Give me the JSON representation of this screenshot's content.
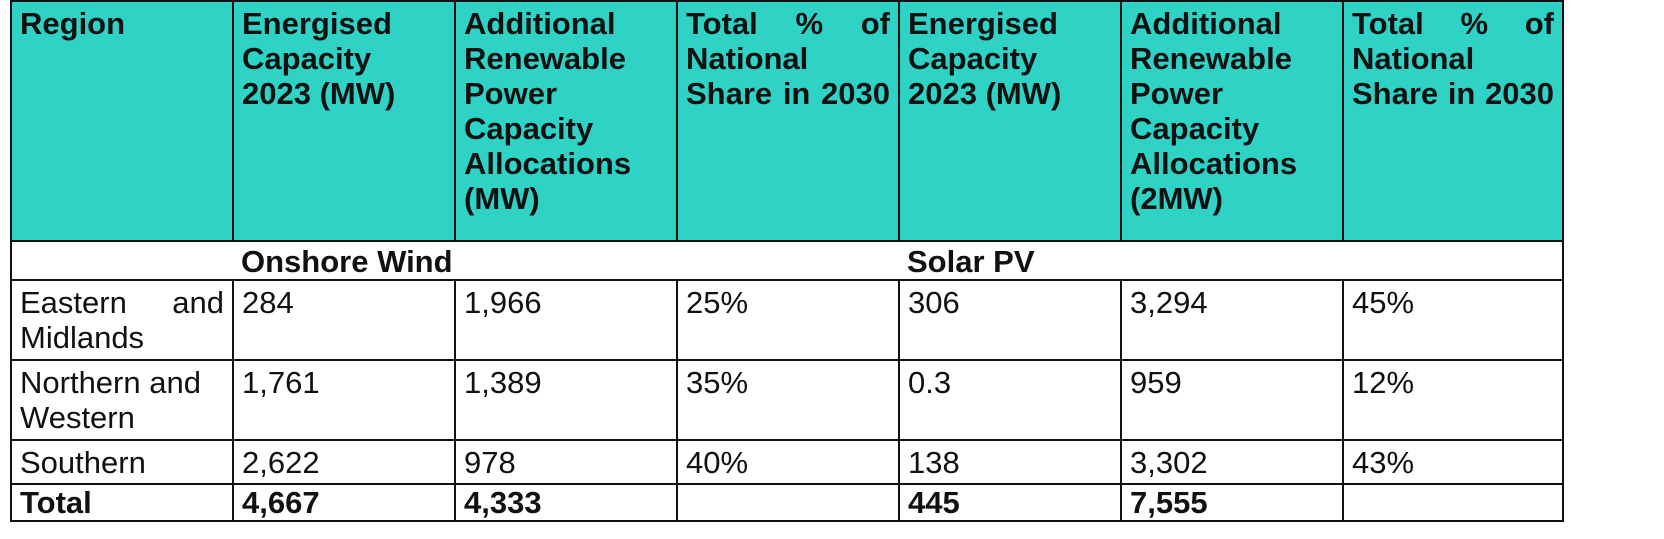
{
  "headers": {
    "region": "Region",
    "wind_energised": "Energised Capacity 2023 (MW)",
    "wind_additional": "Additional Renewable Power Capacity Allocations (MW)",
    "wind_share": "Total % of National Share in 2030",
    "solar_energised": "Energised Capacity 2023 (MW)",
    "solar_additional": "Additional Renewable Power Capacity Allocations (2MW)",
    "solar_share": "Total % of National Share in 2030"
  },
  "groups": {
    "wind": "Onshore Wind",
    "solar": "Solar PV"
  },
  "rows": [
    {
      "region": "Eastern and Midlands",
      "wind_energised": "284",
      "wind_additional": "1,966",
      "wind_share": "25%",
      "solar_energised": "306",
      "solar_additional": "3,294",
      "solar_share": "45%"
    },
    {
      "region": "Northern and Western",
      "wind_energised": "1,761",
      "wind_additional": "1,389",
      "wind_share": "35%",
      "solar_energised": "0.3",
      "solar_additional": "959",
      "solar_share": "12%"
    },
    {
      "region": "Southern",
      "wind_energised": "2,622",
      "wind_additional": "978",
      "wind_share": "40%",
      "solar_energised": "138",
      "solar_additional": "3,302",
      "solar_share": "43%"
    }
  ],
  "total": {
    "label": "Total",
    "wind_energised": "4,667",
    "wind_additional": "4,333",
    "wind_share": "",
    "solar_energised": "445",
    "solar_additional": "7,555",
    "solar_share": ""
  },
  "colors": {
    "header_background": "#2fd3c6",
    "border": "#111111"
  }
}
